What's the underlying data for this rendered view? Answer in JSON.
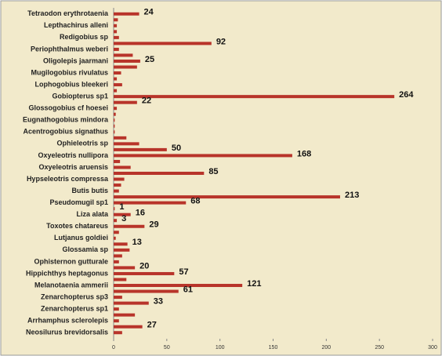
{
  "chart_data": {
    "type": "bar",
    "orientation": "horizontal",
    "color": "#b8342a",
    "categories": [
      "Tetraodon erythrotaenia",
      null,
      "Lepthachirus alleni",
      null,
      "Redigobius sp",
      null,
      "Periophthalmus weberi",
      null,
      "Oligolepis jaarmani",
      null,
      "Mugilogobius rivulatus",
      null,
      "Lophogobius bleekeri",
      null,
      "Gobiopterus sp1",
      null,
      "Glossogobius cf hoesei",
      null,
      "Eugnathogobius mindora",
      null,
      "Acentrogobius signathus",
      null,
      "Ophieleotris sp",
      null,
      "Oxyeleotris nullipora",
      null,
      "Oxyeleotris aruensis",
      null,
      "Hypseleotris compressa",
      null,
      "Butis butis",
      null,
      "Pseudomugil sp1",
      null,
      "Liza alata",
      null,
      "Toxotes chatareus",
      null,
      "Lutjanus goldiei",
      null,
      "Glossamia sp",
      null,
      "Ophisternon gutturale",
      null,
      "Hippichthys heptagonus",
      null,
      "Melanotaenia ammerii",
      null,
      "Zenarchopterus sp3",
      null,
      "Zenarchopterus sp1",
      null,
      "Arrhamphus sclerolepis",
      null,
      "Neosilurus brevidorsalis"
    ],
    "values": [
      24,
      4,
      3,
      3,
      5,
      92,
      5,
      18,
      25,
      22,
      7,
      3,
      8,
      3,
      264,
      22,
      3,
      2,
      1,
      1,
      1,
      12,
      24,
      50,
      168,
      6,
      16,
      85,
      10,
      7,
      5,
      213,
      68,
      1,
      16,
      3,
      29,
      5,
      2,
      13,
      15,
      8,
      5,
      20,
      57,
      12,
      121,
      61,
      8,
      33,
      5,
      20,
      5,
      27,
      8
    ],
    "value_labels": [
      "24",
      null,
      null,
      null,
      null,
      "92",
      null,
      null,
      "25",
      null,
      null,
      null,
      null,
      null,
      "264",
      "22",
      null,
      null,
      null,
      null,
      null,
      null,
      null,
      "50",
      "168",
      null,
      null,
      "85",
      null,
      null,
      null,
      "213",
      "68",
      "1",
      "16",
      "3",
      "29",
      null,
      null,
      "13",
      null,
      null,
      null,
      "20",
      "57",
      null,
      "121",
      "61",
      null,
      "33",
      null,
      null,
      null,
      "27",
      null
    ],
    "xlim": [
      0,
      300
    ],
    "xticks": [
      0,
      50,
      100,
      150,
      200,
      250,
      300
    ]
  }
}
